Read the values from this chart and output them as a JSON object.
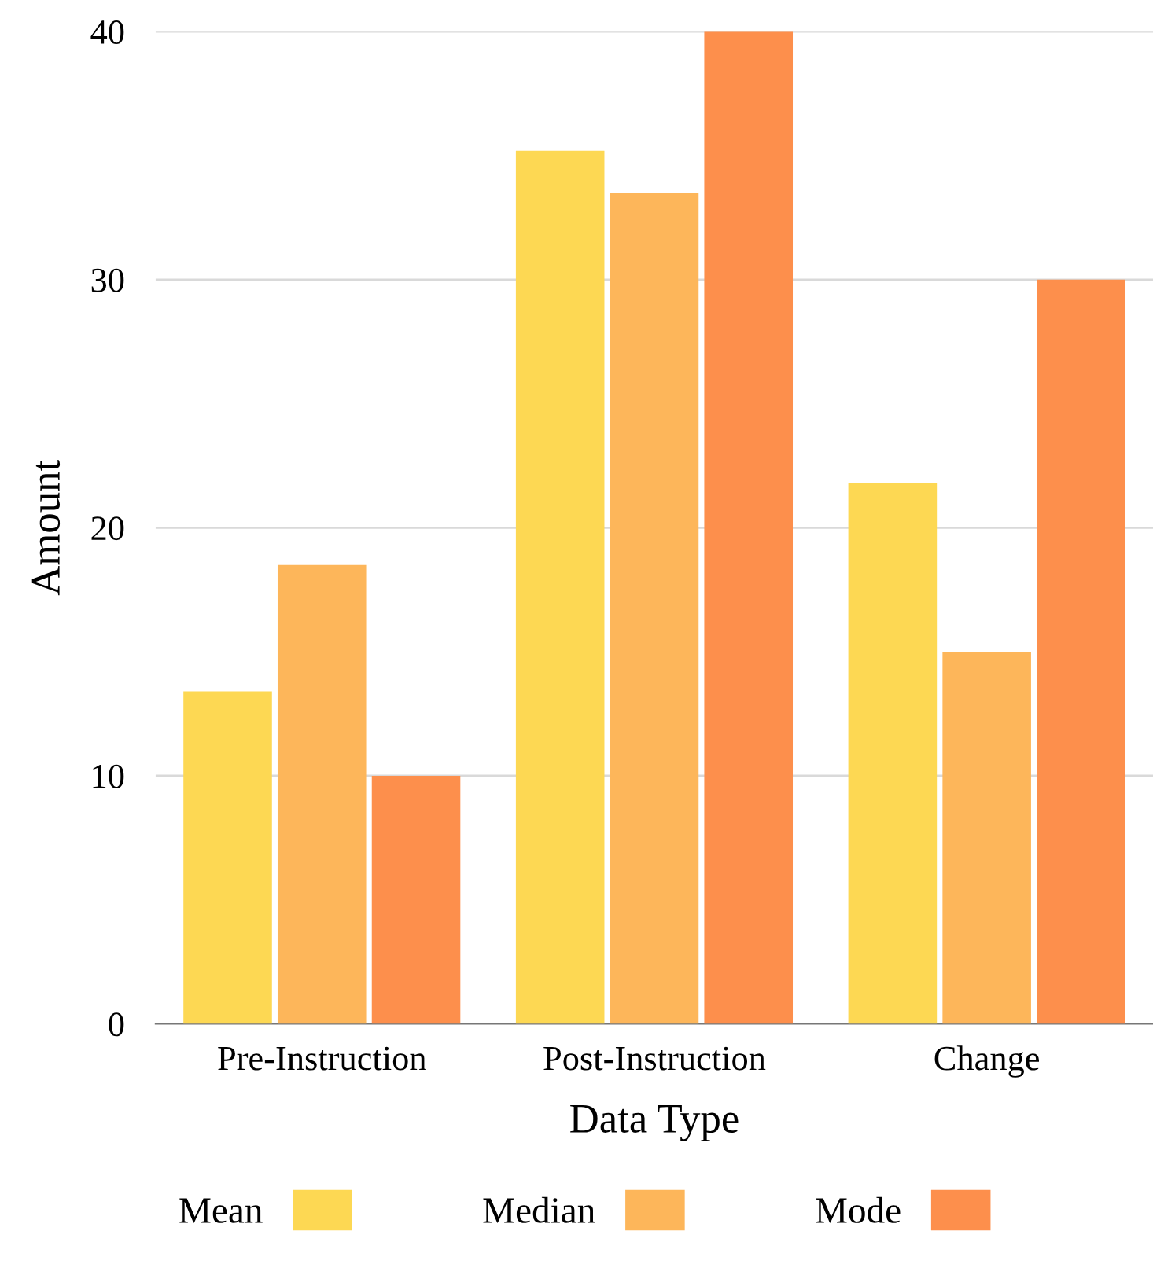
{
  "chart_data": {
    "type": "bar",
    "xlabel": "Data Type",
    "ylabel": "Amount",
    "categories": [
      "Pre-Instruction",
      "Post-Instruction",
      "Change"
    ],
    "series": [
      {
        "name": "Mean",
        "color": "#fdd853",
        "values": [
          13.4,
          35.2,
          21.8
        ]
      },
      {
        "name": "Median",
        "color": "#fdb65a",
        "values": [
          18.5,
          33.5,
          15
        ]
      },
      {
        "name": "Mode",
        "color": "#fd8f4c",
        "values": [
          10,
          40,
          30
        ]
      }
    ],
    "ylim": [
      0,
      40
    ],
    "yticks": [
      0,
      10,
      20,
      30,
      40
    ],
    "grid": "y",
    "legend": "bottom"
  }
}
